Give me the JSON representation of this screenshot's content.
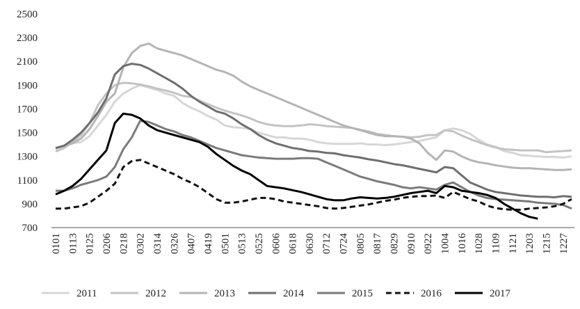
{
  "chart_data": {
    "type": "line",
    "title": "",
    "xlabel": "",
    "ylabel": "",
    "ylim": [
      700,
      2500
    ],
    "yticks": [
      700,
      900,
      1100,
      1300,
      1500,
      1700,
      1900,
      2100,
      2300,
      2500
    ],
    "grid": false,
    "legend": "bottom",
    "x": [
      "0101",
      "0107",
      "0113",
      "0119",
      "0125",
      "0131",
      "0206",
      "0212",
      "0218",
      "0224",
      "0302",
      "0308",
      "0314",
      "0320",
      "0326",
      "0401",
      "0407",
      "0413",
      "0419",
      "0425",
      "0501",
      "0507",
      "0513",
      "0519",
      "0525",
      "0531",
      "0606",
      "0612",
      "0618",
      "0624",
      "0630",
      "0706",
      "0712",
      "0718",
      "0724",
      "0730",
      "0805",
      "0811",
      "0817",
      "0823",
      "0829",
      "0904",
      "0910",
      "0916",
      "0922",
      "0928",
      "1004",
      "1010",
      "1016",
      "1022",
      "1028",
      "1103",
      "1109",
      "1115",
      "1121",
      "1127",
      "1203",
      "1209",
      "1215",
      "1221",
      "1227",
      "1231"
    ],
    "xtick_labels": [
      "0101",
      "0113",
      "0125",
      "0206",
      "0218",
      "0302",
      "0314",
      "0326",
      "0407",
      "0419",
      "0501",
      "0513",
      "0525",
      "0606",
      "0618",
      "0630",
      "0712",
      "0724",
      "0805",
      "0817",
      "0829",
      "0910",
      "0922",
      "1004",
      "1016",
      "1028",
      "1109",
      "1121",
      "1203",
      "1215",
      "1227"
    ],
    "series": [
      {
        "name": "2011",
        "color": "#d6d6d6",
        "dash": "solid",
        "values": [
          1360,
          1380,
          1410,
          1420,
          1470,
          1560,
          1650,
          1760,
          1830,
          1870,
          1900,
          1880,
          1860,
          1830,
          1810,
          1750,
          1710,
          1680,
          1640,
          1610,
          1560,
          1545,
          1540,
          1530,
          1500,
          1480,
          1460,
          1460,
          1450,
          1450,
          1440,
          1420,
          1410,
          1405,
          1405,
          1405,
          1410,
          1400,
          1400,
          1395,
          1400,
          1410,
          1420,
          1430,
          1445,
          1460,
          1520,
          1535,
          1520,
          1490,
          1440,
          1400,
          1380,
          1345,
          1330,
          1310,
          1305,
          1300,
          1295,
          1295,
          1290,
          1300
        ]
      },
      {
        "name": "2012",
        "color": "#c3c3c3",
        "dash": "solid",
        "values": [
          1340,
          1370,
          1420,
          1480,
          1580,
          1730,
          1830,
          1900,
          1920,
          1915,
          1905,
          1890,
          1870,
          1855,
          1835,
          1810,
          1800,
          1770,
          1740,
          1710,
          1685,
          1665,
          1645,
          1620,
          1590,
          1570,
          1560,
          1555,
          1555,
          1560,
          1570,
          1565,
          1555,
          1550,
          1545,
          1540,
          1525,
          1510,
          1490,
          1480,
          1470,
          1465,
          1460,
          1465,
          1480,
          1480,
          1520,
          1510,
          1475,
          1445,
          1420,
          1395,
          1375,
          1360,
          1355,
          1350,
          1350,
          1350,
          1335,
          1340,
          1345,
          1350
        ]
      },
      {
        "name": "2013",
        "color": "#b4b4b4",
        "dash": "solid",
        "values": [
          1370,
          1390,
          1410,
          1450,
          1530,
          1640,
          1760,
          1830,
          2050,
          2170,
          2230,
          2250,
          2210,
          2190,
          2170,
          2150,
          2120,
          2090,
          2060,
          2030,
          2010,
          1980,
          1930,
          1890,
          1860,
          1830,
          1800,
          1770,
          1740,
          1710,
          1680,
          1650,
          1620,
          1590,
          1560,
          1540,
          1520,
          1500,
          1480,
          1470,
          1470,
          1465,
          1450,
          1410,
          1330,
          1270,
          1350,
          1340,
          1300,
          1270,
          1250,
          1240,
          1225,
          1215,
          1205,
          1200,
          1200,
          1195,
          1190,
          1185,
          1185,
          1190
        ]
      },
      {
        "name": "2014",
        "color": "#6e6e6e",
        "dash": "solid",
        "values": [
          1370,
          1390,
          1440,
          1500,
          1580,
          1670,
          1790,
          1990,
          2060,
          2080,
          2070,
          2040,
          2000,
          1960,
          1920,
          1870,
          1810,
          1760,
          1720,
          1680,
          1660,
          1620,
          1570,
          1530,
          1480,
          1440,
          1410,
          1390,
          1370,
          1360,
          1345,
          1340,
          1330,
          1325,
          1310,
          1300,
          1290,
          1275,
          1265,
          1250,
          1235,
          1225,
          1210,
          1195,
          1180,
          1165,
          1210,
          1200,
          1140,
          1080,
          1050,
          1020,
          1000,
          990,
          980,
          970,
          965,
          960,
          960,
          955,
          965,
          960
        ]
      },
      {
        "name": "2015",
        "color": "#7a7a7a",
        "dash": "solid",
        "values": [
          1010,
          1010,
          1030,
          1060,
          1080,
          1100,
          1130,
          1210,
          1360,
          1460,
          1600,
          1590,
          1560,
          1530,
          1510,
          1480,
          1460,
          1430,
          1400,
          1370,
          1350,
          1330,
          1310,
          1300,
          1290,
          1285,
          1280,
          1280,
          1280,
          1285,
          1285,
          1280,
          1250,
          1220,
          1190,
          1160,
          1130,
          1110,
          1090,
          1075,
          1060,
          1040,
          1030,
          1040,
          1030,
          1020,
          1060,
          1080,
          1040,
          1000,
          970,
          950,
          940,
          935,
          930,
          925,
          920,
          910,
          905,
          900,
          890,
          860
        ]
      },
      {
        "name": "2016",
        "color": "#111111",
        "dash": "dashed",
        "values": [
          860,
          860,
          870,
          880,
          910,
          960,
          1010,
          1070,
          1210,
          1260,
          1270,
          1240,
          1210,
          1180,
          1150,
          1110,
          1080,
          1040,
          990,
          940,
          910,
          910,
          920,
          935,
          950,
          950,
          940,
          920,
          910,
          900,
          890,
          880,
          865,
          860,
          865,
          875,
          885,
          895,
          910,
          925,
          935,
          950,
          960,
          965,
          965,
          970,
          950,
          1000,
          970,
          940,
          920,
          885,
          865,
          855,
          850,
          850,
          860,
          865,
          870,
          880,
          900,
          940
        ]
      },
      {
        "name": "2017",
        "color": "#000000",
        "dash": "solid",
        "values": [
          980,
          1010,
          1050,
          1110,
          1190,
          1270,
          1350,
          1580,
          1660,
          1650,
          1620,
          1560,
          1520,
          1500,
          1480,
          1460,
          1440,
          1420,
          1380,
          1320,
          1270,
          1220,
          1180,
          1150,
          1100,
          1050,
          1040,
          1030,
          1015,
          1000,
          980,
          960,
          940,
          930,
          930,
          945,
          955,
          950,
          945,
          950,
          960,
          975,
          990,
          1000,
          1010,
          990,
          1050,
          1040,
          1010,
          1000,
          990,
          975,
          950,
          900,
          860,
          820,
          790,
          775,
          null,
          null,
          null,
          null
        ]
      }
    ]
  }
}
